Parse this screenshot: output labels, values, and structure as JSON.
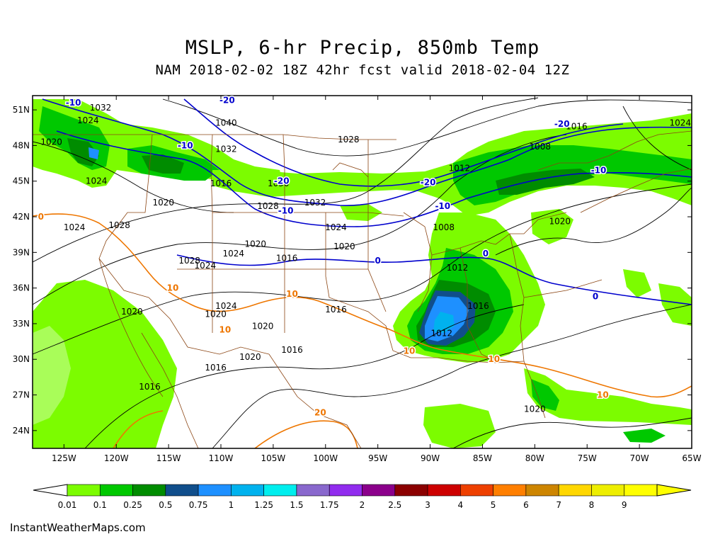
{
  "title": "MSLP, 6-hr Precip, 850mb Temp",
  "subtitle": "NAM 2018-02-02 18Z 42hr fcst valid 2018-02-04 12Z",
  "footer": "InstantWeatherMaps.com",
  "lat_labels": [
    "51N",
    "48N",
    "45N",
    "42N",
    "39N",
    "36N",
    "33N",
    "30N",
    "27N",
    "24N"
  ],
  "lon_labels": [
    "125W",
    "120W",
    "115W",
    "110W",
    "105W",
    "100W",
    "95W",
    "90W",
    "85W",
    "80W",
    "75W",
    "70W",
    "65W"
  ],
  "legend": {
    "labels": [
      "0.01",
      "0.1",
      "0.25",
      "0.5",
      "0.75",
      "1",
      "1.25",
      "1.5",
      "1.75",
      "2",
      "2.5",
      "3",
      "4",
      "5",
      "6",
      "7",
      "8",
      "9"
    ],
    "colors": [
      "#7cfc00",
      "#00c800",
      "#008c00",
      "#104e8b",
      "#1e90ff",
      "#00b2ee",
      "#00eeee",
      "#8968cd",
      "#912cee",
      "#8b008b",
      "#8b0000",
      "#cd0000",
      "#ee4000",
      "#ff7f00",
      "#cd8500",
      "#ffd700",
      "#eeee00",
      "#ffff00"
    ]
  },
  "pressure_labels": [
    {
      "text": "1032",
      "lon": -121.5,
      "lat": 51.2
    },
    {
      "text": "1024",
      "lon": -122.7,
      "lat": 50.1
    },
    {
      "text": "1020",
      "lon": -126.2,
      "lat": 48.3
    },
    {
      "text": "1040",
      "lon": -109.5,
      "lat": 49.9
    },
    {
      "text": "1032",
      "lon": -109.5,
      "lat": 47.7
    },
    {
      "text": "1028",
      "lon": -97.8,
      "lat": 48.5
    },
    {
      "text": "1016",
      "lon": -76.0,
      "lat": 49.6
    },
    {
      "text": "1024",
      "lon": -66.1,
      "lat": 49.9
    },
    {
      "text": "1008",
      "lon": -79.5,
      "lat": 47.9
    },
    {
      "text": "1012",
      "lon": -87.2,
      "lat": 46.1
    },
    {
      "text": "1024",
      "lon": -121.9,
      "lat": 45.0
    },
    {
      "text": "1016",
      "lon": -110.0,
      "lat": 44.8
    },
    {
      "text": "1030",
      "lon": -104.5,
      "lat": 44.8
    },
    {
      "text": "1020",
      "lon": -115.5,
      "lat": 43.2
    },
    {
      "text": "1028",
      "lon": -105.5,
      "lat": 42.9
    },
    {
      "text": "1032",
      "lon": -101.0,
      "lat": 43.2
    },
    {
      "text": "1024",
      "lon": -124.0,
      "lat": 41.1
    },
    {
      "text": "1028",
      "lon": -119.7,
      "lat": 41.3
    },
    {
      "text": "1024",
      "lon": -99.0,
      "lat": 41.1
    },
    {
      "text": "1020",
      "lon": -98.2,
      "lat": 39.5
    },
    {
      "text": "1008",
      "lon": -88.7,
      "lat": 41.1
    },
    {
      "text": "1020",
      "lon": -77.6,
      "lat": 41.6
    },
    {
      "text": "1020",
      "lon": -106.7,
      "lat": 39.7
    },
    {
      "text": "1024",
      "lon": -108.8,
      "lat": 38.9
    },
    {
      "text": "1016",
      "lon": -103.7,
      "lat": 38.5
    },
    {
      "text": "1028",
      "lon": -113.0,
      "lat": 38.3
    },
    {
      "text": "1024",
      "lon": -111.5,
      "lat": 37.9
    },
    {
      "text": "1012",
      "lon": -87.4,
      "lat": 37.7
    },
    {
      "text": "1024",
      "lon": -109.5,
      "lat": 34.5
    },
    {
      "text": "1020",
      "lon": -110.5,
      "lat": 33.8
    },
    {
      "text": "1020",
      "lon": -118.5,
      "lat": 34.0
    },
    {
      "text": "1016",
      "lon": -99.0,
      "lat": 34.2
    },
    {
      "text": "1020",
      "lon": -106.0,
      "lat": 32.8
    },
    {
      "text": "1016",
      "lon": -85.4,
      "lat": 34.5
    },
    {
      "text": "1012",
      "lon": -88.9,
      "lat": 32.2
    },
    {
      "text": "1016",
      "lon": -103.2,
      "lat": 30.8
    },
    {
      "text": "1020",
      "lon": -107.2,
      "lat": 30.2
    },
    {
      "text": "1016",
      "lon": -110.5,
      "lat": 29.3
    },
    {
      "text": "1016",
      "lon": -116.8,
      "lat": 27.7
    },
    {
      "text": "1020",
      "lon": -80.0,
      "lat": 25.8
    }
  ],
  "temp_labels_blue": [
    {
      "text": "-10",
      "lon": -124.1,
      "lat": 51.6
    },
    {
      "text": "-20",
      "lon": -109.4,
      "lat": 51.8
    },
    {
      "text": "-10",
      "lon": -113.4,
      "lat": 48.0
    },
    {
      "text": "-20",
      "lon": -77.4,
      "lat": 49.8
    },
    {
      "text": "-10",
      "lon": -73.9,
      "lat": 45.9
    },
    {
      "text": "-20",
      "lon": -104.2,
      "lat": 45.0
    },
    {
      "text": "-20",
      "lon": -90.2,
      "lat": 44.9
    },
    {
      "text": "-10",
      "lon": -103.8,
      "lat": 42.5
    },
    {
      "text": "-10",
      "lon": -88.8,
      "lat": 42.9
    },
    {
      "text": "0",
      "lon": -84.7,
      "lat": 38.9
    },
    {
      "text": "0",
      "lon": -95.0,
      "lat": 38.3
    },
    {
      "text": "0",
      "lon": -74.2,
      "lat": 35.3
    }
  ],
  "temp_labels_orange": [
    {
      "text": "0",
      "lon": -127.2,
      "lat": 42.0
    },
    {
      "text": "10",
      "lon": -114.6,
      "lat": 36.0
    },
    {
      "text": "10",
      "lon": -103.2,
      "lat": 35.5
    },
    {
      "text": "10",
      "lon": -109.6,
      "lat": 32.5
    },
    {
      "text": "10",
      "lon": -92.0,
      "lat": 30.7
    },
    {
      "text": "10",
      "lon": -83.9,
      "lat": 30.0
    },
    {
      "text": "10",
      "lon": -73.5,
      "lat": 27.0
    },
    {
      "text": "20",
      "lon": -100.5,
      "lat": 25.5
    }
  ]
}
